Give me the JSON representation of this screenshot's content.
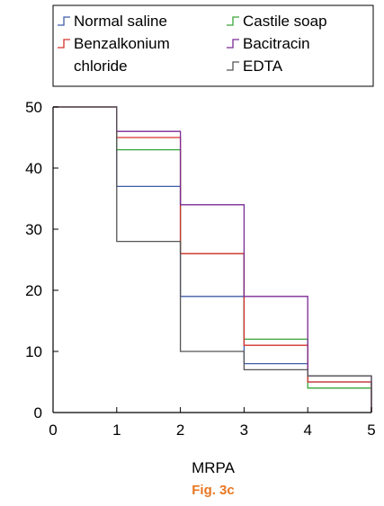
{
  "chart_data": {
    "type": "line",
    "step": true,
    "xlabel": "MRPA",
    "ylabel": "",
    "xlim": [
      0,
      5
    ],
    "ylim": [
      0,
      50
    ],
    "xticks": [
      "0",
      "1",
      "2",
      "3",
      "4",
      "5"
    ],
    "yticks": [
      "0",
      "10",
      "20",
      "30",
      "40",
      "50"
    ],
    "grid": false,
    "legend_position": "top",
    "x": [
      0,
      1,
      2,
      3,
      4,
      5
    ],
    "series": [
      {
        "name": "Normal saline",
        "color": "#3f5ca8",
        "values": [
          50,
          37,
          19,
          8,
          5,
          0
        ]
      },
      {
        "name": "Castile soap",
        "color": "#3aa43a",
        "values": [
          50,
          43,
          26,
          12,
          4,
          0
        ]
      },
      {
        "name": "Benzalkonium chloride",
        "name_lines": [
          "Benzalkonium",
          "chloride"
        ],
        "color": "#d6332b",
        "values": [
          50,
          45,
          26,
          11,
          5,
          0
        ]
      },
      {
        "name": "Bacitracin",
        "color": "#7b2a93",
        "values": [
          50,
          46,
          34,
          19,
          6,
          0
        ]
      },
      {
        "name": "EDTA",
        "color": "#555555",
        "values": [
          50,
          28,
          10,
          7,
          6,
          0
        ]
      }
    ]
  },
  "caption": "Fig. 3c",
  "caption_color": "#e87722"
}
